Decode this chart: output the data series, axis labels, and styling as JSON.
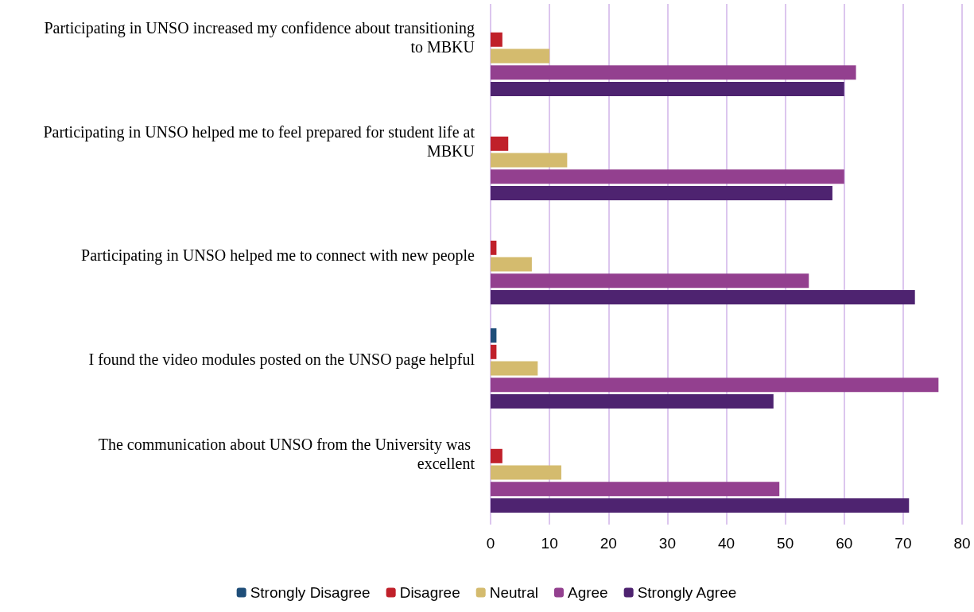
{
  "chart_data": {
    "type": "bar",
    "orientation": "horizontal",
    "categories": [
      "Participating in UNSO increased my confidence about transitioning to MBKU",
      "Participating in UNSO helped me to feel prepared for student life at MBKU",
      "Participating in UNSO helped me to connect with new people",
      "I found the video modules posted on the UNSO page helpful",
      "The communication about UNSO from the University was excellent"
    ],
    "series": [
      {
        "name": "Strongly Disagree",
        "color": "#1f4e79",
        "values": [
          0,
          0,
          0,
          1,
          0
        ]
      },
      {
        "name": "Disagree",
        "color": "#c0202a",
        "values": [
          2,
          3,
          1,
          1,
          2
        ]
      },
      {
        "name": "Neutral",
        "color": "#d4bb6e",
        "values": [
          10,
          13,
          7,
          8,
          12
        ]
      },
      {
        "name": "Agree",
        "color": "#93408f",
        "values": [
          62,
          60,
          54,
          76,
          49
        ]
      },
      {
        "name": "Strongly Agree",
        "color": "#4e2370",
        "values": [
          60,
          58,
          72,
          48,
          71
        ]
      }
    ],
    "xlim": [
      0,
      80
    ],
    "xticks": [
      0,
      10,
      20,
      30,
      40,
      50,
      60,
      70,
      80
    ],
    "grid": "x",
    "legend": "bottom"
  }
}
